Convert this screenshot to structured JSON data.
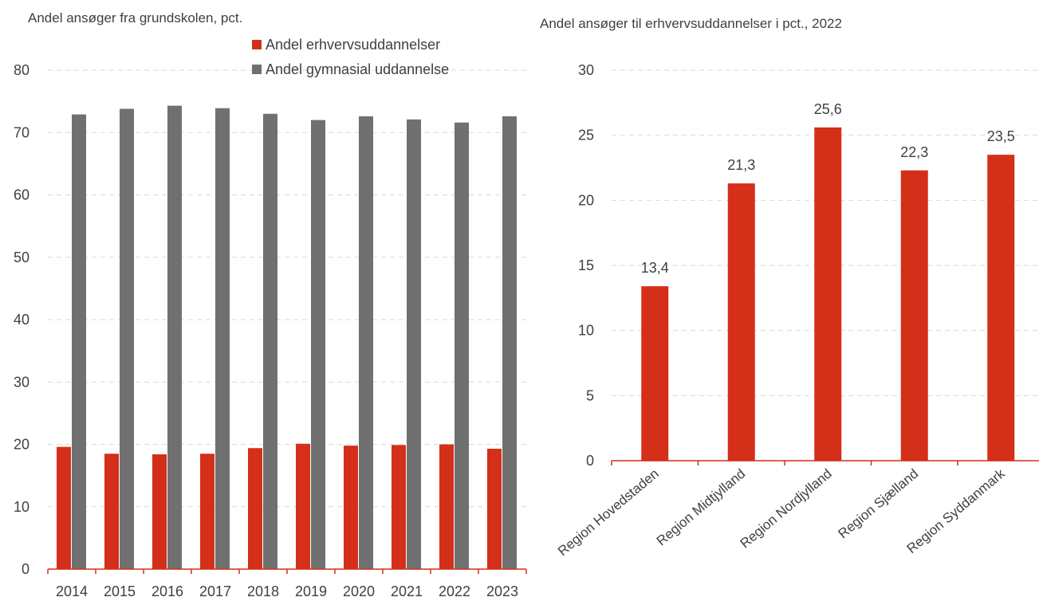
{
  "chart_data": [
    {
      "type": "bar",
      "title": "Andel ansøger fra grundskolen, pct.",
      "categories": [
        "2014",
        "2015",
        "2016",
        "2017",
        "2018",
        "2019",
        "2020",
        "2021",
        "2022",
        "2023"
      ],
      "series": [
        {
          "name": "Andel erhvervsuddannelser",
          "color": "#d42f19",
          "values": [
            19.6,
            18.5,
            18.4,
            18.5,
            19.4,
            20.1,
            19.8,
            19.9,
            20.0,
            19.3
          ]
        },
        {
          "name": "Andel gymnasial uddannelse",
          "color": "#707070",
          "values": [
            72.9,
            73.8,
            74.3,
            73.9,
            73.0,
            72.0,
            72.6,
            72.1,
            71.6,
            72.6
          ]
        }
      ],
      "ylim": [
        0,
        80
      ],
      "yticks": [
        0,
        10,
        20,
        30,
        40,
        50,
        60,
        70,
        80
      ],
      "grid": true,
      "legend": "top-right"
    },
    {
      "type": "bar",
      "title": "Andel ansøger til erhvervsuddannelser i pct., 2022",
      "categories": [
        "Region Hovedstaden",
        "Region Midtjylland",
        "Region Nordjylland",
        "Region Sjælland",
        "Region Syddanmark"
      ],
      "values": [
        13.4,
        21.3,
        25.6,
        22.3,
        23.5
      ],
      "data_labels": [
        "13,4",
        "21,3",
        "25,6",
        "22,3",
        "23,5"
      ],
      "color": "#d42f19",
      "ylim": [
        0,
        30
      ],
      "yticks": [
        0,
        5,
        10,
        15,
        20,
        25,
        30
      ],
      "grid": true
    }
  ]
}
